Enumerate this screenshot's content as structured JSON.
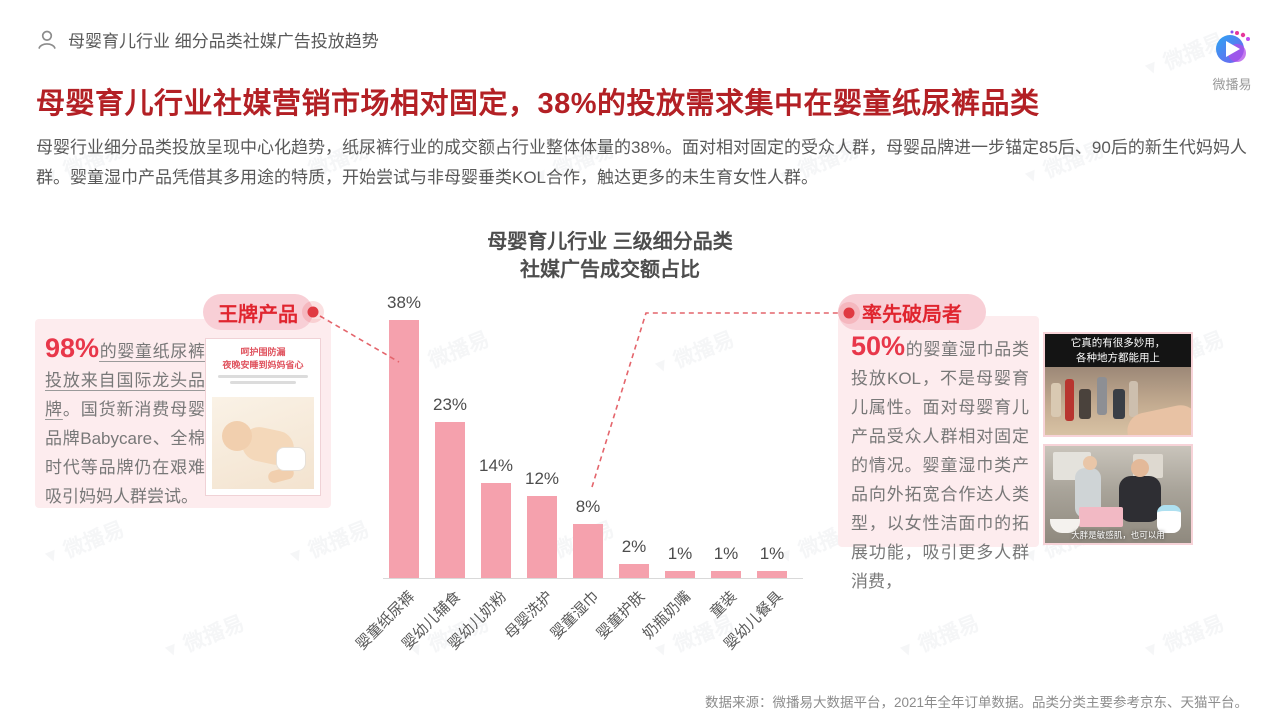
{
  "header": {
    "breadcrumb": "母婴育儿行业 细分品类社媒广告投放趋势"
  },
  "brand": {
    "logo_text": "微播易"
  },
  "title": "母婴育儿行业社媒营销市场相对固定，38%的投放需求集中在婴童纸尿裤品类",
  "intro": "母婴行业细分品类投放呈现中心化趋势，纸尿裤行业的成交额占行业整体体量的38%。面对相对固定的受众人群，母婴品牌进一步锚定85后、90后的新生代妈妈人群。婴童湿巾产品凭借其多用途的特质，开始尝试与非母婴垂类KOL合作，触达更多的未生育女性人群。",
  "chart_data": {
    "type": "bar",
    "title_line1": "母婴育儿行业 三级细分品类",
    "title_line2": "社媒广告成交额占比",
    "categories": [
      "婴童纸尿裤",
      "婴幼儿辅食",
      "婴幼儿奶粉",
      "母婴洗护",
      "婴童湿巾",
      "婴童护肤",
      "奶瓶奶嘴",
      "童装",
      "婴幼儿餐具"
    ],
    "values": [
      38,
      23,
      14,
      12,
      8,
      2,
      1,
      1,
      1
    ],
    "unit": "%",
    "xlabel": "",
    "ylabel": "",
    "ylim": [
      0,
      40
    ],
    "grid": false,
    "legend": "none",
    "bar_color": "#f5a1ad",
    "axis_color": "#d9d9d9"
  },
  "callout_left": {
    "badge": "王牌产品",
    "highlight": "98%",
    "text_underlined": "的婴童纸尿裤投放来自国际龙头品牌",
    "text_rest": "。国货新消费母婴品牌Babycare、全棉时代等品牌仍在艰难吸引妈妈人群尝试。",
    "ad_line1": "呵护围防漏",
    "ad_line2": "夜晚安睡到妈妈省心"
  },
  "callout_right": {
    "badge": "率先破局者",
    "highlight": "50%",
    "text": "的婴童湿巾品类投放KOL，不是母婴育儿属性。面对母婴育儿产品受众人群相对固定的情况。婴童湿巾类产品向外拓宽合作达人类型，以女性洁面巾的拓展功能，吸引更多人群消费，",
    "video1_caption_line1": "它真的有很多妙用，",
    "video1_caption_line2": "各种地方都能用上",
    "video2_caption": "大胖是敏感肌，也可以用"
  },
  "footer": {
    "source": "数据来源：微播易大数据平台，2021年全年订单数据。品类分类主要参考京东、天猫平台。"
  },
  "watermark_text": "微播易"
}
